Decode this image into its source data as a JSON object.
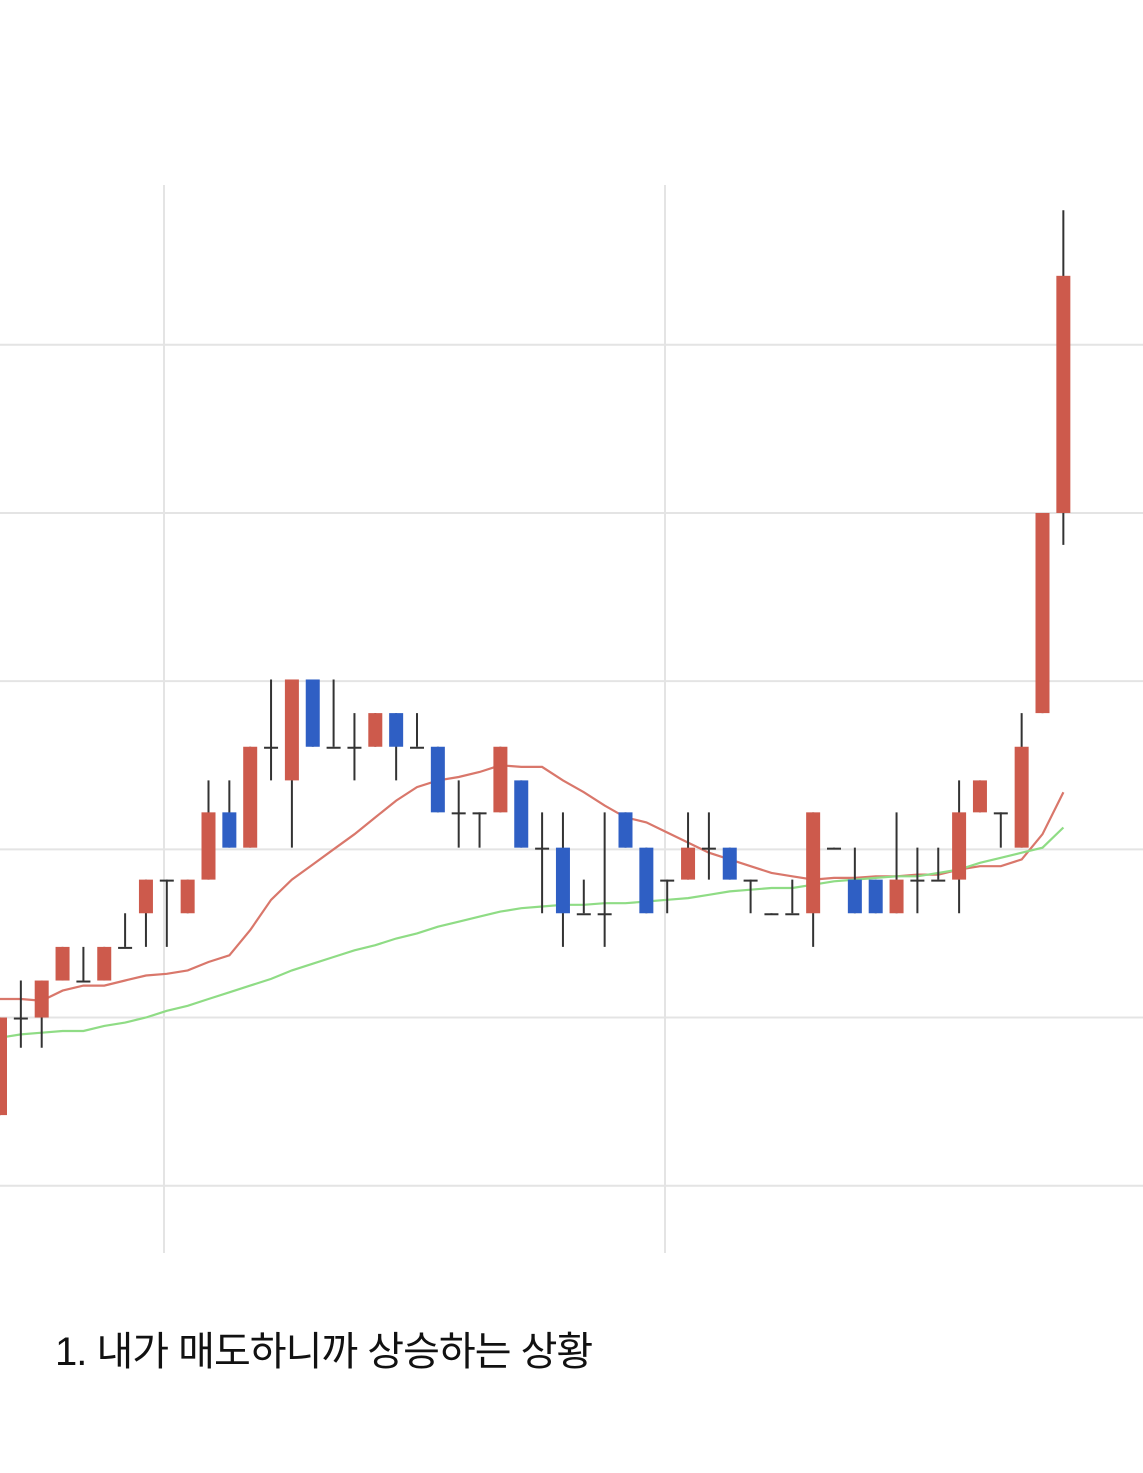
{
  "chart_data": {
    "type": "candlestick",
    "up_color": "#cd5a4c",
    "down_color": "#2f5fc4",
    "wick_color": "#333333",
    "open": [
      0.42,
      1.0,
      1.0,
      1.22,
      1.22,
      1.22,
      1.42,
      1.62,
      1.82,
      1.62,
      1.82,
      2.22,
      2.01,
      2.61,
      2.41,
      3.01,
      2.61,
      2.61,
      2.61,
      2.81,
      2.61,
      2.61,
      2.22,
      2.22,
      2.22,
      2.41,
      2.01,
      2.01,
      1.62,
      1.62,
      2.22,
      2.01,
      1.82,
      1.82,
      2.01,
      2.01,
      1.82,
      1.62,
      1.62,
      1.62,
      2.01,
      1.82,
      1.82,
      1.62,
      1.82,
      1.82,
      1.82,
      2.22,
      2.22,
      2.01,
      2.81,
      4.0
    ],
    "high": [
      1.0,
      1.22,
      1.22,
      1.42,
      1.42,
      1.42,
      1.62,
      1.82,
      1.82,
      1.82,
      2.41,
      2.41,
      2.61,
      3.01,
      3.01,
      3.01,
      3.01,
      2.81,
      2.81,
      2.81,
      2.81,
      2.61,
      2.41,
      2.22,
      2.61,
      2.41,
      2.22,
      2.22,
      1.82,
      2.22,
      2.22,
      2.01,
      1.82,
      2.22,
      2.22,
      2.01,
      1.82,
      1.62,
      1.82,
      2.22,
      2.01,
      2.01,
      1.82,
      2.22,
      2.01,
      2.01,
      2.41,
      2.41,
      2.22,
      2.81,
      4.0,
      5.8
    ],
    "low": [
      0.42,
      0.82,
      0.82,
      1.22,
      1.22,
      1.22,
      1.42,
      1.42,
      1.42,
      1.62,
      1.82,
      2.01,
      2.01,
      2.41,
      2.01,
      2.61,
      2.61,
      2.41,
      2.61,
      2.41,
      2.61,
      2.22,
      2.01,
      2.01,
      2.22,
      2.01,
      1.62,
      1.42,
      1.62,
      1.42,
      2.01,
      1.62,
      1.62,
      1.82,
      1.82,
      1.82,
      1.62,
      1.62,
      1.62,
      1.42,
      2.01,
      1.62,
      1.62,
      1.62,
      1.62,
      1.82,
      1.62,
      2.22,
      2.01,
      2.01,
      2.81,
      3.81
    ],
    "close": [
      1.0,
      1.0,
      1.22,
      1.42,
      1.22,
      1.42,
      1.42,
      1.82,
      1.82,
      1.82,
      2.22,
      2.01,
      2.61,
      2.61,
      3.01,
      2.61,
      2.61,
      2.61,
      2.81,
      2.61,
      2.61,
      2.22,
      2.22,
      2.22,
      2.61,
      2.01,
      2.01,
      1.62,
      1.62,
      1.62,
      2.01,
      1.62,
      1.82,
      2.01,
      2.01,
      1.82,
      1.82,
      1.62,
      1.62,
      2.22,
      2.01,
      1.62,
      1.62,
      1.82,
      1.82,
      1.82,
      2.22,
      2.41,
      2.22,
      2.61,
      4.0,
      5.41
    ],
    "lines": [
      {
        "color": "#d9776b",
        "values": [
          1.11,
          1.11,
          1.1,
          1.16,
          1.19,
          1.19,
          1.22,
          1.25,
          1.26,
          1.28,
          1.33,
          1.37,
          1.52,
          1.7,
          1.82,
          1.91,
          2.0,
          2.09,
          2.19,
          2.29,
          2.37,
          2.41,
          2.43,
          2.46,
          2.5,
          2.49,
          2.49,
          2.41,
          2.34,
          2.26,
          2.19,
          2.16,
          2.1,
          2.04,
          1.98,
          1.94,
          1.9,
          1.86,
          1.84,
          1.82,
          1.83,
          1.83,
          1.84,
          1.84,
          1.85,
          1.85,
          1.88,
          1.9,
          1.9,
          1.94,
          2.09,
          2.34
        ]
      },
      {
        "color": "#8fdc85",
        "values": [
          0.88,
          0.9,
          0.91,
          0.92,
          0.92,
          0.95,
          0.97,
          1.0,
          1.04,
          1.07,
          1.11,
          1.15,
          1.19,
          1.23,
          1.28,
          1.32,
          1.36,
          1.4,
          1.43,
          1.47,
          1.5,
          1.54,
          1.57,
          1.6,
          1.63,
          1.65,
          1.66,
          1.67,
          1.67,
          1.68,
          1.68,
          1.69,
          1.7,
          1.71,
          1.73,
          1.75,
          1.76,
          1.77,
          1.77,
          1.79,
          1.81,
          1.82,
          1.83,
          1.84,
          1.84,
          1.86,
          1.88,
          1.92,
          1.95,
          1.98,
          2.01,
          2.13
        ]
      }
    ],
    "ylim": [
      -0.4,
      5.95
    ],
    "yticks": [
      0,
      1,
      2,
      3,
      4,
      5
    ],
    "grid": true
  },
  "caption": "1. 내가 매도하니까 상승하는 상황"
}
